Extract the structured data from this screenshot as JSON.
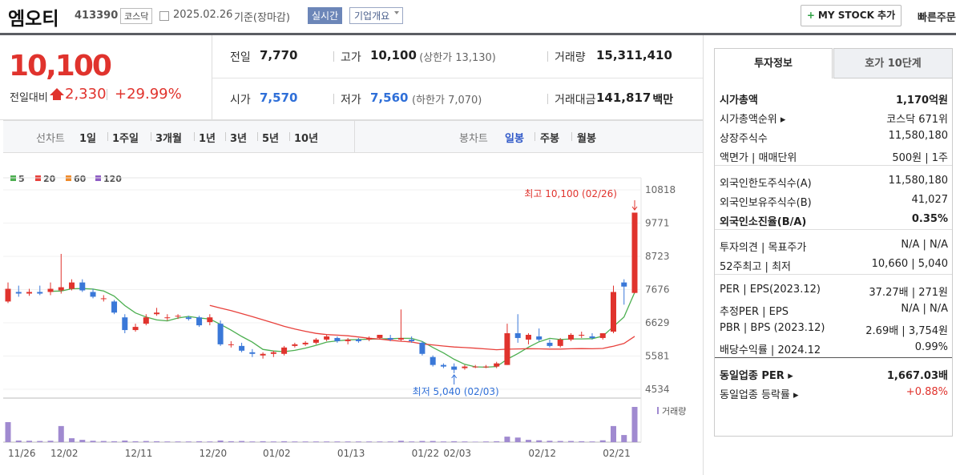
{
  "header": {
    "name": "엠오티",
    "code": "413390",
    "market": "코스닥",
    "date": "2025.02.26",
    "basis": "기준(장마감)",
    "realtime": "실시간",
    "overview": "기업개요",
    "mystock": "MY STOCK 추가",
    "quick_order": "빠른주문"
  },
  "quote": {
    "price": "10,100",
    "change_label": "전일대비",
    "change": "2,330",
    "change_pct": "+29.99%"
  },
  "summary": [
    [
      {
        "label": "전일",
        "value": "7,770"
      },
      {
        "label": "고가",
        "value": "10,100",
        "note": "(상한가 13,130)"
      },
      {
        "label": "거래량",
        "value": "15,311,410"
      }
    ],
    [
      {
        "label": "시가",
        "value": "7,570"
      },
      {
        "label": "저가",
        "value": "7,560",
        "note": "(하한가 7,070)"
      },
      {
        "label": "거래대금",
        "value": "141,817",
        "note": "백만"
      }
    ]
  ],
  "periods": {
    "line_label": "선차트",
    "line": [
      "1일",
      "1주일",
      "3개월",
      "1년",
      "3년",
      "5년",
      "10년"
    ],
    "candle_label": "봉차트",
    "candle": [
      "일봉",
      "주봉",
      "월봉"
    ]
  },
  "chart_data": {
    "type": "candlestick",
    "legend": [
      {
        "name": "5",
        "color": "#4caf50"
      },
      {
        "name": "20",
        "color": "#e8413c"
      },
      {
        "name": "60",
        "color": "#f08a2a"
      },
      {
        "name": "120",
        "color": "#8e5cc4"
      }
    ],
    "categories": [
      null,
      "11/26",
      null,
      null,
      null,
      "12/02",
      null,
      null,
      null,
      null,
      null,
      null,
      "12/11",
      null,
      null,
      null,
      null,
      null,
      null,
      "12/20",
      null,
      null,
      null,
      null,
      null,
      "01/02",
      null,
      null,
      null,
      null,
      null,
      null,
      "01/13",
      null,
      null,
      null,
      null,
      null,
      null,
      "01/22",
      null,
      null,
      "02/03",
      null,
      null,
      null,
      null,
      null,
      null,
      null,
      "02/12",
      null,
      null,
      null,
      null,
      null,
      null,
      "02/21",
      null,
      null
    ],
    "open": [
      7300,
      7600,
      7550,
      7600,
      7600,
      7650,
      7700,
      7900,
      7600,
      7400,
      7300,
      6800,
      6400,
      6600,
      6900,
      6800,
      6850,
      6800,
      6800,
      6650,
      6600,
      5950,
      5900,
      5700,
      5600,
      5650,
      5650,
      5900,
      5950,
      6000,
      6100,
      6150,
      6050,
      6100,
      6100,
      6150,
      6150,
      6100,
      6100,
      6000,
      5550,
      5300,
      5250,
      5200,
      5250,
      5250,
      5250,
      5300,
      6300,
      6100,
      6200,
      6000,
      5900,
      6100,
      6250,
      6200,
      6150,
      6350,
      7900,
      7570
    ],
    "high": [
      7900,
      7800,
      7700,
      7800,
      7900,
      8800,
      8000,
      8000,
      7700,
      7500,
      7350,
      6900,
      6600,
      6900,
      7100,
      6900,
      6900,
      6850,
      6850,
      6900,
      6700,
      6050,
      6000,
      5800,
      5700,
      5750,
      5900,
      6000,
      6050,
      6150,
      6250,
      6200,
      6150,
      6150,
      6200,
      6250,
      6250,
      7050,
      6200,
      6050,
      5600,
      5350,
      5350,
      5300,
      5300,
      5300,
      5400,
      6600,
      6900,
      6300,
      6450,
      6100,
      6150,
      6300,
      6350,
      6300,
      6300,
      7800,
      8000,
      10100
    ],
    "low": [
      7250,
      7450,
      7480,
      7500,
      7500,
      7550,
      7650,
      7600,
      7400,
      7300,
      6900,
      6300,
      6350,
      6550,
      6850,
      6700,
      6750,
      6700,
      6500,
      6550,
      5900,
      5850,
      5700,
      5550,
      5500,
      5550,
      5600,
      5850,
      5900,
      5950,
      6050,
      6000,
      5950,
      6000,
      6050,
      6100,
      6050,
      6050,
      6000,
      5600,
      5250,
      5200,
      5040,
      5150,
      5200,
      5200,
      5200,
      5300,
      6000,
      5950,
      6050,
      5850,
      5850,
      6050,
      6150,
      6100,
      6100,
      6300,
      7200,
      7560
    ],
    "close": [
      7700,
      7550,
      7600,
      7550,
      7700,
      7750,
      7900,
      7650,
      7450,
      7400,
      6950,
      6400,
      6500,
      6800,
      6950,
      6800,
      6850,
      6750,
      6550,
      6800,
      5950,
      5950,
      5750,
      5650,
      5650,
      5700,
      5850,
      5950,
      6000,
      6100,
      6200,
      6050,
      6100,
      6050,
      6150,
      6250,
      6100,
      6150,
      6050,
      5650,
      5300,
      5250,
      5150,
      5250,
      5250,
      5250,
      5350,
      6300,
      6150,
      6250,
      6100,
      5900,
      6100,
      6250,
      6250,
      6150,
      6300,
      7600,
      7770,
      10100
    ],
    "volume": [
      8700000,
      700000,
      600000,
      500000,
      600000,
      7000000,
      1700000,
      1000000,
      600000,
      500000,
      400000,
      700000,
      400000,
      500000,
      400000,
      300000,
      300000,
      300000,
      400000,
      300000,
      700000,
      400000,
      500000,
      300000,
      400000,
      300000,
      400000,
      300000,
      300000,
      300000,
      300000,
      300000,
      300000,
      300000,
      300000,
      300000,
      300000,
      600000,
      300000,
      500000,
      500000,
      300000,
      400000,
      300000,
      200000,
      300000,
      400000,
      2400000,
      2000000,
      1000000,
      800000,
      600000,
      500000,
      500000,
      400000,
      300000,
      800000,
      7000000,
      3100000,
      15311410
    ],
    "up_color": "#e0332d",
    "down_color": "#3a78d8",
    "volume_color": "#a08ad0",
    "ylim": [
      4256,
      10995
    ],
    "yticks": [
      4534,
      5581,
      6629,
      7676,
      8723,
      9771,
      10818
    ],
    "volume_lim": [
      0,
      16700000
    ],
    "volume_label": "거래량",
    "grid": true,
    "annotations": {
      "high": "최고 10,100 (02/26)",
      "low": "최저 5,040 (02/03)"
    }
  },
  "invest": {
    "tabs": [
      "투자정보",
      "호가 10단계"
    ],
    "groups": [
      [
        [
          "시가총액",
          "1,170억원"
        ],
        [
          "시가총액순위 ▸",
          "코스닥 671위"
        ],
        [
          "상장주식수",
          "11,580,180"
        ],
        [
          "액면가 | 매매단위",
          "500원 | 1주"
        ]
      ],
      [
        [
          "외국인한도주식수(A)",
          "11,580,180"
        ],
        [
          "외국인보유주식수(B)",
          "41,027"
        ],
        [
          "외국인소진율(B/A)",
          "0.35%"
        ]
      ],
      [
        [
          "투자의견 | 목표주가",
          "N/A | N/A"
        ],
        [
          "52주최고 | 최저",
          "10,660 | 5,040"
        ]
      ],
      [
        [
          "PER | EPS(2023.12)",
          "37.27배 | 271원"
        ],
        [
          "추정PER | EPS",
          "N/A | N/A"
        ],
        [
          "PBR | BPS (2023.12)",
          "2.69배 | 3,754원"
        ],
        [
          "배당수익률 | 2024.12",
          "0.99%"
        ]
      ],
      [
        [
          "동일업종 PER ▸",
          "1,667.03배"
        ],
        [
          "동일업종 등락률 ▸",
          "+0.88%"
        ]
      ]
    ]
  }
}
